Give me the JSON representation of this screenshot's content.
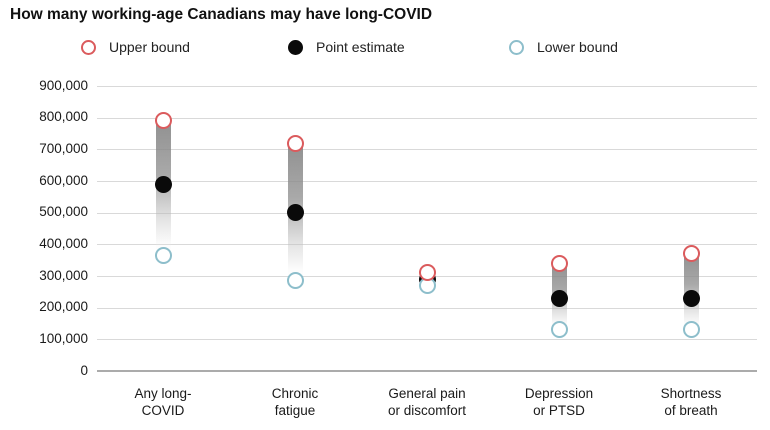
{
  "title": "How many working-age Canadians may have long-COVID",
  "legend": [
    {
      "label": "Upper bound",
      "type": "open",
      "color": "#db5b5d",
      "x": 81
    },
    {
      "label": "Point estimate",
      "type": "filled",
      "color": "#0a0a0a",
      "x": 288
    },
    {
      "label": "Lower bound",
      "type": "open",
      "color": "#8dbecb",
      "x": 509
    }
  ],
  "colors": {
    "upper_bound": "#db5b5d",
    "point_estimate": "#0a0a0a",
    "lower_bound": "#8dbecb",
    "gridline": "#d9d9d9",
    "zero_line": "#ababab",
    "text": "#1a1a1a"
  },
  "chart_data": {
    "type": "scatter",
    "subtype": "dot-plot-with-range",
    "title": "How many working-age Canadians may have long-COVID",
    "categories": [
      {
        "line1": "Any long-",
        "line2": "COVID"
      },
      {
        "line1": "Chronic",
        "line2": "fatigue"
      },
      {
        "line1": "General pain",
        "line2": "or discomfort"
      },
      {
        "line1": "Depression",
        "line2": "or PTSD"
      },
      {
        "line1": "Shortness",
        "line2": "of breath"
      }
    ],
    "series": [
      {
        "name": "Upper bound",
        "values": [
          790000,
          720000,
          310000,
          340000,
          370000
        ]
      },
      {
        "name": "Point estimate",
        "values": [
          590000,
          500000,
          290000,
          230000,
          230000
        ]
      },
      {
        "name": "Lower bound",
        "values": [
          365000,
          285000,
          270000,
          130000,
          130000
        ]
      }
    ],
    "y_axis": {
      "min": 0,
      "max": 900000,
      "tick_step": 100000,
      "tick_labels": [
        "900,000",
        "800,000",
        "700,000",
        "600,000",
        "500,000",
        "400,000",
        "300,000",
        "200,000",
        "100,000",
        "0"
      ]
    },
    "x_axis": {
      "label": ""
    },
    "grid": true,
    "legend_position": "top"
  }
}
